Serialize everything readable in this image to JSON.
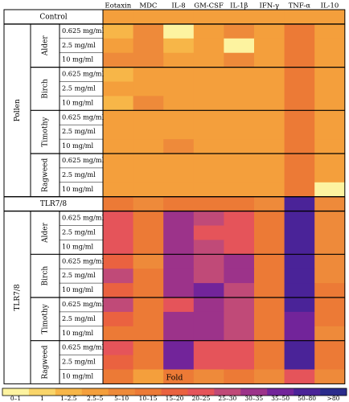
{
  "chart_data": {
    "type": "heatmap",
    "columns": [
      "Eotaxin",
      "MDC",
      "IL-8",
      "GM-CSF",
      "IL-1β",
      "IFN-γ",
      "TNF-α",
      "IL-10"
    ],
    "control_label": "Control",
    "tlr_row_label": "TLR7/8",
    "groups": [
      {
        "name": "Pollen",
        "subgroups": [
          "Alder",
          "Birch",
          "Timothy",
          "Ragweed"
        ]
      },
      {
        "name": "TLR7/8",
        "subgroups": [
          "Alder",
          "Birch",
          "Timothy",
          "Ragweed"
        ]
      }
    ],
    "doses": [
      "0.625 mg/ml",
      "2.5 mg/ml",
      "10 mg/ml"
    ],
    "legend_title": "Fold",
    "legend_bins": [
      "0–1",
      "1",
      "1–2.5",
      "2.5–5",
      "5–10",
      "10–15",
      "15–20",
      "20–25",
      "25–30",
      "30–35",
      "35–50",
      "50–80",
      ">80"
    ],
    "legend_colors": [
      "#FDF3A0",
      "#F9D56A",
      "#F7B648",
      "#F49F3C",
      "#EE8A3A",
      "#EC7A36",
      "#EA6240",
      "#E5545A",
      "#C04A78",
      "#9C338A",
      "#72249A",
      "#4A2398",
      "#2B2C8C"
    ],
    "rows": {
      "control": [
        3,
        3,
        3,
        3,
        3,
        3,
        3,
        3
      ],
      "pollen": [
        [
          [
            2,
            4,
            0,
            3,
            4,
            3,
            5,
            3
          ],
          [
            3,
            4,
            2,
            3,
            0,
            3,
            5,
            3
          ],
          [
            4,
            4,
            3,
            3,
            4,
            3,
            5,
            3
          ]
        ],
        [
          [
            2,
            3,
            3,
            3,
            3,
            3,
            5,
            3
          ],
          [
            3,
            3,
            3,
            3,
            3,
            3,
            5,
            3
          ],
          [
            2,
            4,
            3,
            3,
            3,
            3,
            5,
            3
          ]
        ],
        [
          [
            3,
            3,
            3,
            3,
            3,
            3,
            5,
            3
          ],
          [
            3,
            3,
            3,
            3,
            3,
            3,
            5,
            3
          ],
          [
            3,
            3,
            4,
            3,
            3,
            3,
            5,
            3
          ]
        ],
        [
          [
            3,
            3,
            3,
            3,
            3,
            3,
            5,
            3
          ],
          [
            3,
            3,
            3,
            3,
            3,
            3,
            5,
            3
          ],
          [
            3,
            3,
            3,
            3,
            3,
            3,
            5,
            0
          ]
        ]
      ],
      "tlr": [
        5,
        4,
        5,
        5,
        5,
        4,
        11,
        4
      ],
      "tlr_sub": [
        [
          [
            7,
            5,
            9,
            8,
            7,
            5,
            11,
            4
          ],
          [
            7,
            5,
            9,
            7,
            7,
            5,
            11,
            4
          ],
          [
            7,
            5,
            9,
            8,
            7,
            5,
            11,
            4
          ]
        ],
        [
          [
            6,
            4,
            9,
            8,
            9,
            5,
            11,
            4
          ],
          [
            8,
            5,
            9,
            8,
            9,
            5,
            11,
            4
          ],
          [
            6,
            5,
            9,
            10,
            8,
            5,
            11,
            5
          ]
        ],
        [
          [
            8,
            5,
            7,
            9,
            8,
            5,
            11,
            5
          ],
          [
            6,
            5,
            9,
            9,
            8,
            5,
            10,
            5
          ],
          [
            5,
            5,
            9,
            9,
            8,
            5,
            10,
            4
          ]
        ],
        [
          [
            7,
            5,
            10,
            7,
            7,
            5,
            11,
            5
          ],
          [
            6,
            5,
            10,
            7,
            7,
            5,
            11,
            5
          ],
          [
            5,
            3,
            5,
            4,
            5,
            4,
            7,
            4
          ]
        ]
      ]
    }
  }
}
